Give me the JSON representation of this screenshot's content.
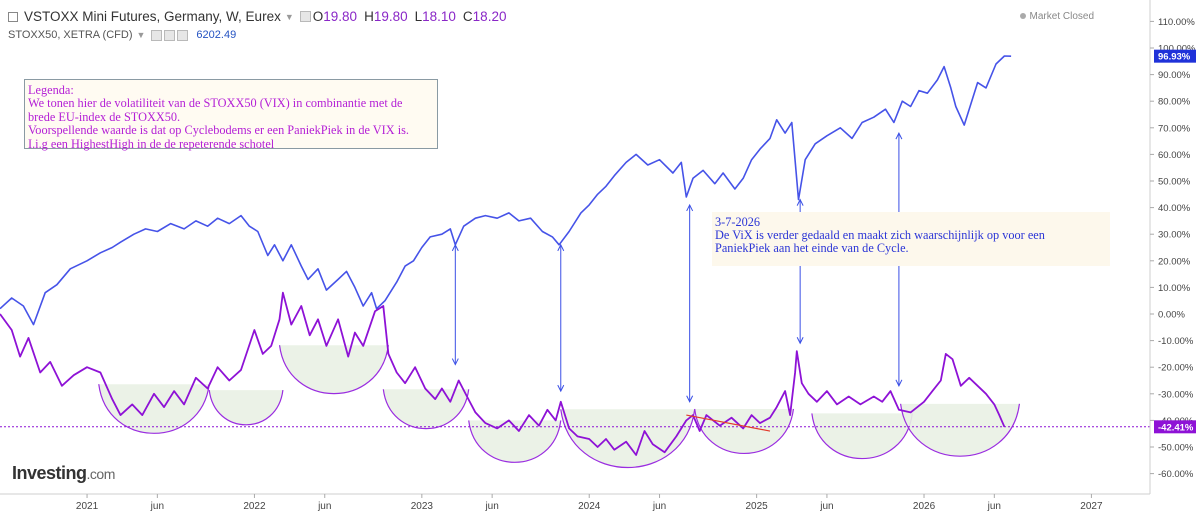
{
  "header": {
    "title": "VSTOXX Mini Futures, Germany, W, Eurex",
    "open_label": "O",
    "open_value": "19.80",
    "high_label": "H",
    "high_value": "19.80",
    "low_label": "L",
    "low_value": "18.10",
    "close_label": "C",
    "close_value": "18.20",
    "market_status": "Market Closed",
    "compare_symbol": "STOXX50, XETRA (CFD)",
    "compare_value": "6202.49"
  },
  "legend_box": {
    "lines": [
      "Legenda:",
      "We tonen hier de volatiliteit van de STOXX50 (VIX) in combinantie met de",
      "brede EU-index de STOXX50.",
      "Voorspellende waarde is dat op Cyclebodems er een PaniekPiek in de VIX is.",
      "I.i.g een HighestHigh in de de repeterende schotel"
    ]
  },
  "note_box": {
    "lines": [
      "3-7-2026",
      "De ViX is verder gedaald en maakt zich waarschijnlijk op voor een",
      "PaniekPiek aan het einde van de Cycle."
    ]
  },
  "logo": {
    "main": "Investing",
    "suffix": ".com"
  },
  "colors": {
    "vix": "#8e12d6",
    "stoxx": "#4653e8",
    "bowl": "#9a2de0",
    "bowl_fill": "#e9f1e4",
    "arrow": "#3a4fe6",
    "trend": "#e23a2c",
    "stoxx_badge": "#1f32d9",
    "vix_badge": "#8e12d6"
  },
  "chart_data": {
    "type": "line",
    "y_axis": {
      "unit": "%",
      "ylim": [
        -70,
        115
      ],
      "ticks": [
        "110.00%",
        "100.00%",
        "90.00%",
        "80.00%",
        "70.00%",
        "60.00%",
        "50.00%",
        "40.00%",
        "30.00%",
        "20.00%",
        "10.00%",
        "0.00%",
        "-10.00%",
        "-20.00%",
        "-30.00%",
        "-40.00%",
        "-50.00%",
        "-60.00%"
      ],
      "tick_values": [
        110,
        100,
        90,
        80,
        70,
        60,
        50,
        40,
        30,
        20,
        10,
        0,
        -10,
        -20,
        -30,
        -40,
        -50,
        -60
      ],
      "badges": [
        {
          "label": "96.93%",
          "value": 96.93,
          "series": "stoxx"
        },
        {
          "label": "-42.41%",
          "value": -42.41,
          "series": "vix"
        }
      ]
    },
    "x_axis": {
      "xlim": [
        2020.48,
        2027.35
      ],
      "ticks": [
        {
          "label": "2021",
          "x": 2021.0
        },
        {
          "label": "jun",
          "x": 2021.42
        },
        {
          "label": "2022",
          "x": 2022.0
        },
        {
          "label": "jun",
          "x": 2022.42
        },
        {
          "label": "2023",
          "x": 2023.0
        },
        {
          "label": "jun",
          "x": 2023.42
        },
        {
          "label": "2024",
          "x": 2024.0
        },
        {
          "label": "jun",
          "x": 2024.42
        },
        {
          "label": "2025",
          "x": 2025.0
        },
        {
          "label": "jun",
          "x": 2025.42
        },
        {
          "label": "2026",
          "x": 2026.0
        },
        {
          "label": "jun",
          "x": 2026.42
        },
        {
          "label": "2027",
          "x": 2027.0
        }
      ]
    },
    "series": [
      {
        "id": "stoxx",
        "points": [
          [
            2020.48,
            2
          ],
          [
            2020.55,
            6
          ],
          [
            2020.62,
            3
          ],
          [
            2020.68,
            -4
          ],
          [
            2020.75,
            8
          ],
          [
            2020.82,
            11
          ],
          [
            2020.9,
            17
          ],
          [
            2021.0,
            20
          ],
          [
            2021.08,
            23
          ],
          [
            2021.15,
            25
          ],
          [
            2021.2,
            27
          ],
          [
            2021.28,
            30
          ],
          [
            2021.35,
            32
          ],
          [
            2021.42,
            31
          ],
          [
            2021.5,
            34
          ],
          [
            2021.58,
            32
          ],
          [
            2021.65,
            35
          ],
          [
            2021.72,
            33
          ],
          [
            2021.78,
            36
          ],
          [
            2021.85,
            34
          ],
          [
            2021.92,
            37
          ],
          [
            2021.97,
            33
          ],
          [
            2022.02,
            31
          ],
          [
            2022.08,
            22
          ],
          [
            2022.12,
            26
          ],
          [
            2022.17,
            20
          ],
          [
            2022.22,
            26
          ],
          [
            2022.28,
            18
          ],
          [
            2022.32,
            13
          ],
          [
            2022.38,
            17
          ],
          [
            2022.43,
            9
          ],
          [
            2022.5,
            13
          ],
          [
            2022.55,
            16
          ],
          [
            2022.6,
            10
          ],
          [
            2022.65,
            3
          ],
          [
            2022.7,
            8
          ],
          [
            2022.73,
            2
          ],
          [
            2022.78,
            5
          ],
          [
            2022.85,
            12
          ],
          [
            2022.9,
            18
          ],
          [
            2022.95,
            20
          ],
          [
            2023.0,
            25
          ],
          [
            2023.05,
            29
          ],
          [
            2023.12,
            30
          ],
          [
            2023.17,
            32
          ],
          [
            2023.2,
            26
          ],
          [
            2023.25,
            33
          ],
          [
            2023.32,
            36
          ],
          [
            2023.38,
            37
          ],
          [
            2023.45,
            36
          ],
          [
            2023.52,
            38
          ],
          [
            2023.58,
            35
          ],
          [
            2023.65,
            36
          ],
          [
            2023.72,
            31
          ],
          [
            2023.78,
            29
          ],
          [
            2023.82,
            26
          ],
          [
            2023.88,
            31
          ],
          [
            2023.95,
            38
          ],
          [
            2024.0,
            41
          ],
          [
            2024.05,
            45
          ],
          [
            2024.1,
            48
          ],
          [
            2024.15,
            52
          ],
          [
            2024.22,
            57
          ],
          [
            2024.28,
            60
          ],
          [
            2024.35,
            56
          ],
          [
            2024.42,
            58
          ],
          [
            2024.5,
            53
          ],
          [
            2024.55,
            57
          ],
          [
            2024.58,
            44
          ],
          [
            2024.62,
            51
          ],
          [
            2024.68,
            54
          ],
          [
            2024.75,
            49
          ],
          [
            2024.8,
            53
          ],
          [
            2024.87,
            47
          ],
          [
            2024.92,
            51
          ],
          [
            2024.97,
            58
          ],
          [
            2025.02,
            62
          ],
          [
            2025.08,
            66
          ],
          [
            2025.12,
            73
          ],
          [
            2025.17,
            68
          ],
          [
            2025.21,
            72
          ],
          [
            2025.25,
            43
          ],
          [
            2025.29,
            58
          ],
          [
            2025.35,
            64
          ],
          [
            2025.42,
            67
          ],
          [
            2025.5,
            70
          ],
          [
            2025.57,
            66
          ],
          [
            2025.63,
            72
          ],
          [
            2025.7,
            74
          ],
          [
            2025.77,
            77
          ],
          [
            2025.82,
            72
          ],
          [
            2025.87,
            80
          ],
          [
            2025.92,
            78
          ],
          [
            2025.97,
            84
          ],
          [
            2026.02,
            83
          ],
          [
            2026.08,
            88
          ],
          [
            2026.12,
            93
          ],
          [
            2026.16,
            85
          ],
          [
            2026.19,
            78
          ],
          [
            2026.24,
            71
          ],
          [
            2026.28,
            79
          ],
          [
            2026.32,
            87
          ],
          [
            2026.37,
            85
          ],
          [
            2026.43,
            94
          ],
          [
            2026.48,
            97
          ],
          [
            2026.52,
            96.93
          ]
        ]
      },
      {
        "id": "vix",
        "points": [
          [
            2020.48,
            0
          ],
          [
            2020.55,
            -6
          ],
          [
            2020.6,
            -16
          ],
          [
            2020.65,
            -9
          ],
          [
            2020.72,
            -22
          ],
          [
            2020.78,
            -18
          ],
          [
            2020.85,
            -27
          ],
          [
            2020.92,
            -23
          ],
          [
            2021.0,
            -20
          ],
          [
            2021.08,
            -22
          ],
          [
            2021.15,
            -32
          ],
          [
            2021.2,
            -38
          ],
          [
            2021.27,
            -34
          ],
          [
            2021.33,
            -38
          ],
          [
            2021.4,
            -30
          ],
          [
            2021.46,
            -35
          ],
          [
            2021.52,
            -29
          ],
          [
            2021.58,
            -34
          ],
          [
            2021.65,
            -24
          ],
          [
            2021.72,
            -28
          ],
          [
            2021.78,
            -20
          ],
          [
            2021.85,
            -25
          ],
          [
            2021.92,
            -21
          ],
          [
            2022.0,
            -6
          ],
          [
            2022.05,
            -15
          ],
          [
            2022.1,
            -12
          ],
          [
            2022.15,
            -2
          ],
          [
            2022.17,
            8
          ],
          [
            2022.22,
            -4
          ],
          [
            2022.28,
            3
          ],
          [
            2022.33,
            -8
          ],
          [
            2022.38,
            -2
          ],
          [
            2022.43,
            -12
          ],
          [
            2022.5,
            -2
          ],
          [
            2022.56,
            -16
          ],
          [
            2022.6,
            -7
          ],
          [
            2022.65,
            -12
          ],
          [
            2022.72,
            1
          ],
          [
            2022.77,
            3
          ],
          [
            2022.8,
            -15
          ],
          [
            2022.85,
            -22
          ],
          [
            2022.9,
            -26
          ],
          [
            2022.96,
            -20
          ],
          [
            2023.02,
            -28
          ],
          [
            2023.08,
            -32
          ],
          [
            2023.12,
            -28
          ],
          [
            2023.17,
            -33
          ],
          [
            2023.22,
            -25
          ],
          [
            2023.27,
            -31
          ],
          [
            2023.32,
            -37
          ],
          [
            2023.38,
            -41
          ],
          [
            2023.45,
            -43
          ],
          [
            2023.52,
            -40
          ],
          [
            2023.58,
            -44
          ],
          [
            2023.64,
            -38
          ],
          [
            2023.7,
            -42
          ],
          [
            2023.75,
            -36
          ],
          [
            2023.8,
            -40
          ],
          [
            2023.83,
            -33
          ],
          [
            2023.88,
            -43
          ],
          [
            2023.93,
            -46
          ],
          [
            2024.0,
            -47
          ],
          [
            2024.05,
            -50
          ],
          [
            2024.1,
            -47
          ],
          [
            2024.15,
            -51
          ],
          [
            2024.22,
            -48
          ],
          [
            2024.28,
            -53
          ],
          [
            2024.33,
            -44
          ],
          [
            2024.38,
            -49
          ],
          [
            2024.45,
            -52
          ],
          [
            2024.52,
            -46
          ],
          [
            2024.58,
            -40
          ],
          [
            2024.62,
            -38
          ],
          [
            2024.66,
            -44
          ],
          [
            2024.7,
            -38
          ],
          [
            2024.78,
            -42
          ],
          [
            2024.85,
            -39
          ],
          [
            2024.92,
            -43
          ],
          [
            2024.97,
            -38
          ],
          [
            2025.02,
            -41
          ],
          [
            2025.08,
            -39
          ],
          [
            2025.12,
            -35
          ],
          [
            2025.17,
            -29
          ],
          [
            2025.2,
            -38
          ],
          [
            2025.23,
            -22
          ],
          [
            2025.24,
            -14
          ],
          [
            2025.27,
            -26
          ],
          [
            2025.31,
            -30
          ],
          [
            2025.36,
            -33
          ],
          [
            2025.42,
            -29
          ],
          [
            2025.48,
            -34
          ],
          [
            2025.55,
            -31
          ],
          [
            2025.62,
            -34
          ],
          [
            2025.7,
            -31
          ],
          [
            2025.75,
            -33
          ],
          [
            2025.8,
            -29
          ],
          [
            2025.85,
            -36
          ],
          [
            2025.92,
            -37
          ],
          [
            2026.0,
            -33
          ],
          [
            2026.05,
            -29
          ],
          [
            2026.1,
            -25
          ],
          [
            2026.13,
            -15
          ],
          [
            2026.17,
            -17
          ],
          [
            2026.22,
            -27
          ],
          [
            2026.27,
            -24
          ],
          [
            2026.32,
            -27
          ],
          [
            2026.37,
            -30
          ],
          [
            2026.42,
            -34
          ],
          [
            2026.45,
            -38
          ],
          [
            2026.48,
            -42.41
          ]
        ]
      }
    ],
    "annotations": {
      "cycle_bowls": [
        {
          "x_start": 2021.07,
          "x_end": 2021.73,
          "bottom": -48
        },
        {
          "x_start": 2021.73,
          "x_end": 2022.17,
          "bottom": -43
        },
        {
          "x_start": 2022.15,
          "x_end": 2022.8,
          "bottom": -33
        },
        {
          "x_start": 2022.77,
          "x_end": 2023.28,
          "bottom": -45
        },
        {
          "x_start": 2023.28,
          "x_end": 2023.83,
          "bottom": -58
        },
        {
          "x_start": 2023.83,
          "x_end": 2024.63,
          "bottom": -62
        },
        {
          "x_start": 2024.63,
          "x_end": 2025.22,
          "bottom": -55
        },
        {
          "x_start": 2025.33,
          "x_end": 2025.93,
          "bottom": -57
        },
        {
          "x_start": 2025.86,
          "x_end": 2026.57,
          "bottom": -57
        }
      ],
      "arrows": [
        {
          "x": 2023.2,
          "from": 26,
          "to": -19
        },
        {
          "x": 2023.83,
          "from": 26,
          "to": -29
        },
        {
          "x": 2024.6,
          "from": 41,
          "to": -33
        },
        {
          "x": 2025.26,
          "from": 43,
          "to": -11
        },
        {
          "x": 2025.85,
          "from": 68,
          "to": -27
        }
      ],
      "trendline": {
        "from": [
          2024.58,
          -38
        ],
        "to": [
          2025.08,
          -44
        ]
      },
      "reference_line": -42.41
    }
  }
}
